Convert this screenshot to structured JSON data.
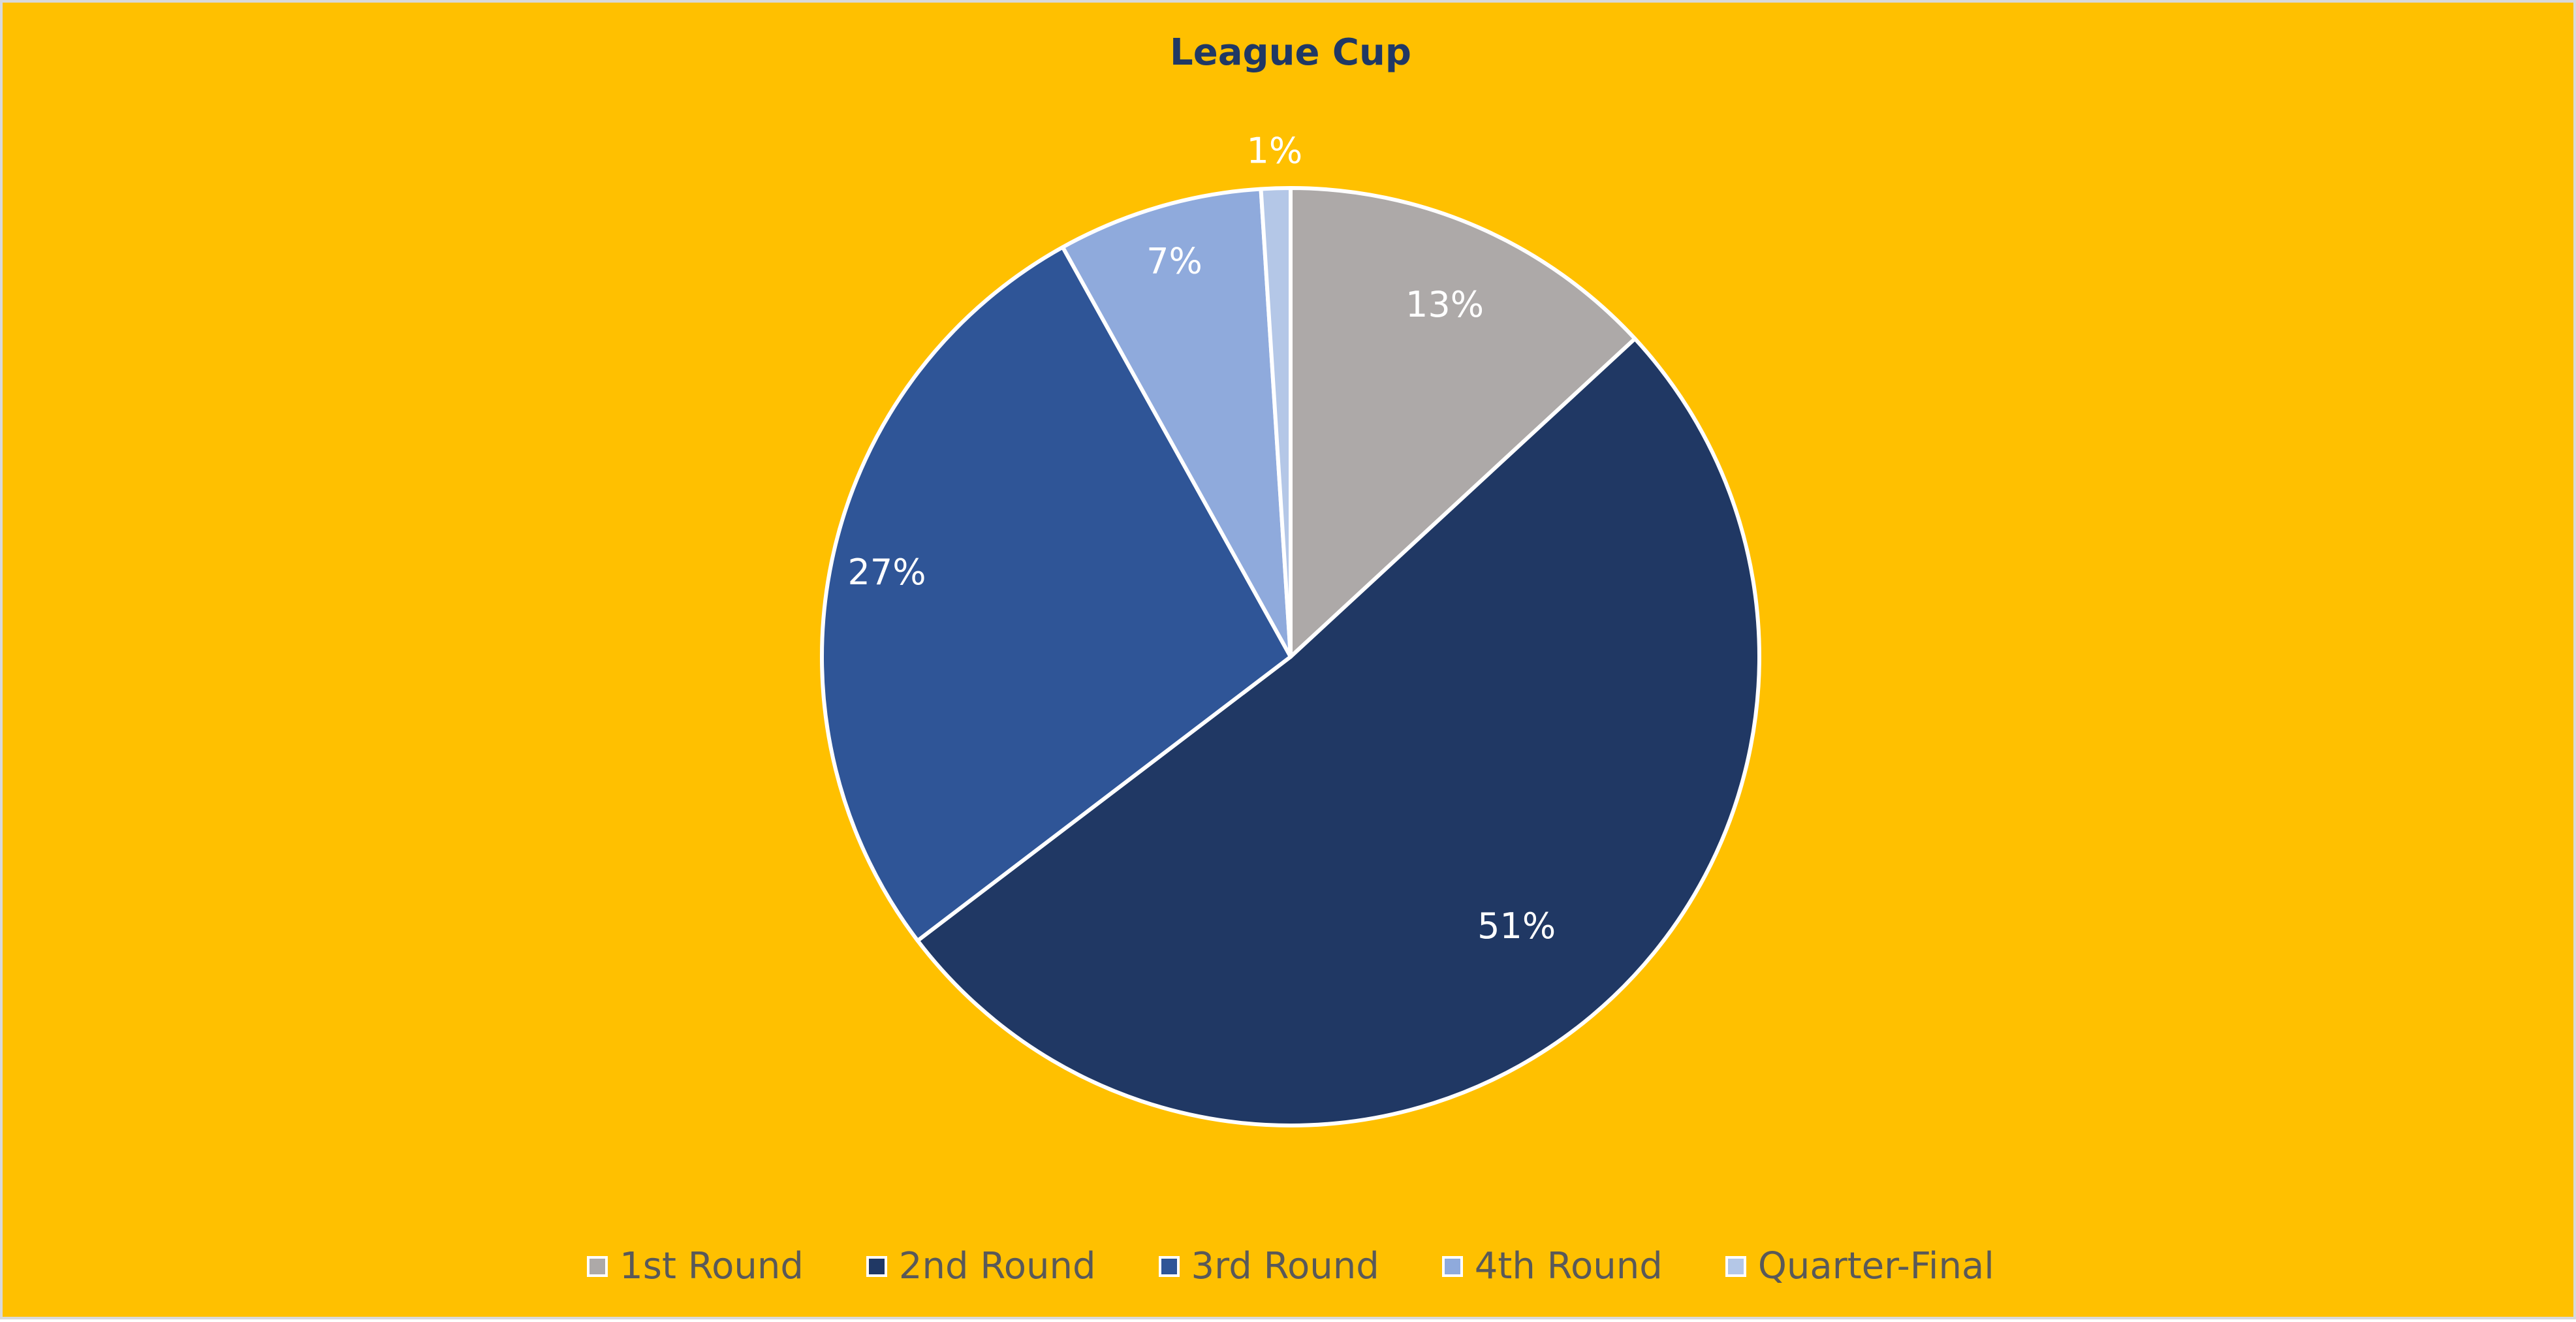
{
  "chart_data": {
    "type": "pie",
    "title": "League Cup",
    "categories": [
      "1st Round",
      "2nd Round",
      "3rd Round",
      "4th Round",
      "Quarter-Final"
    ],
    "values": [
      13,
      51,
      27,
      7,
      1
    ],
    "data_labels": [
      "13%",
      "51%",
      "27%",
      "7%",
      "1%"
    ],
    "colors": [
      "#ADA9A8",
      "#203864",
      "#2F5597",
      "#8FAADC",
      "#B4C7E7"
    ],
    "start_angle_deg": 0,
    "direction": "clockwise",
    "legend_position": "bottom"
  },
  "style": {
    "background": "#FFC000",
    "title_color": "#203864",
    "label_color": "#FFFFFF",
    "legend_text_color": "#595959",
    "slice_border_color": "#FFFFFF"
  }
}
